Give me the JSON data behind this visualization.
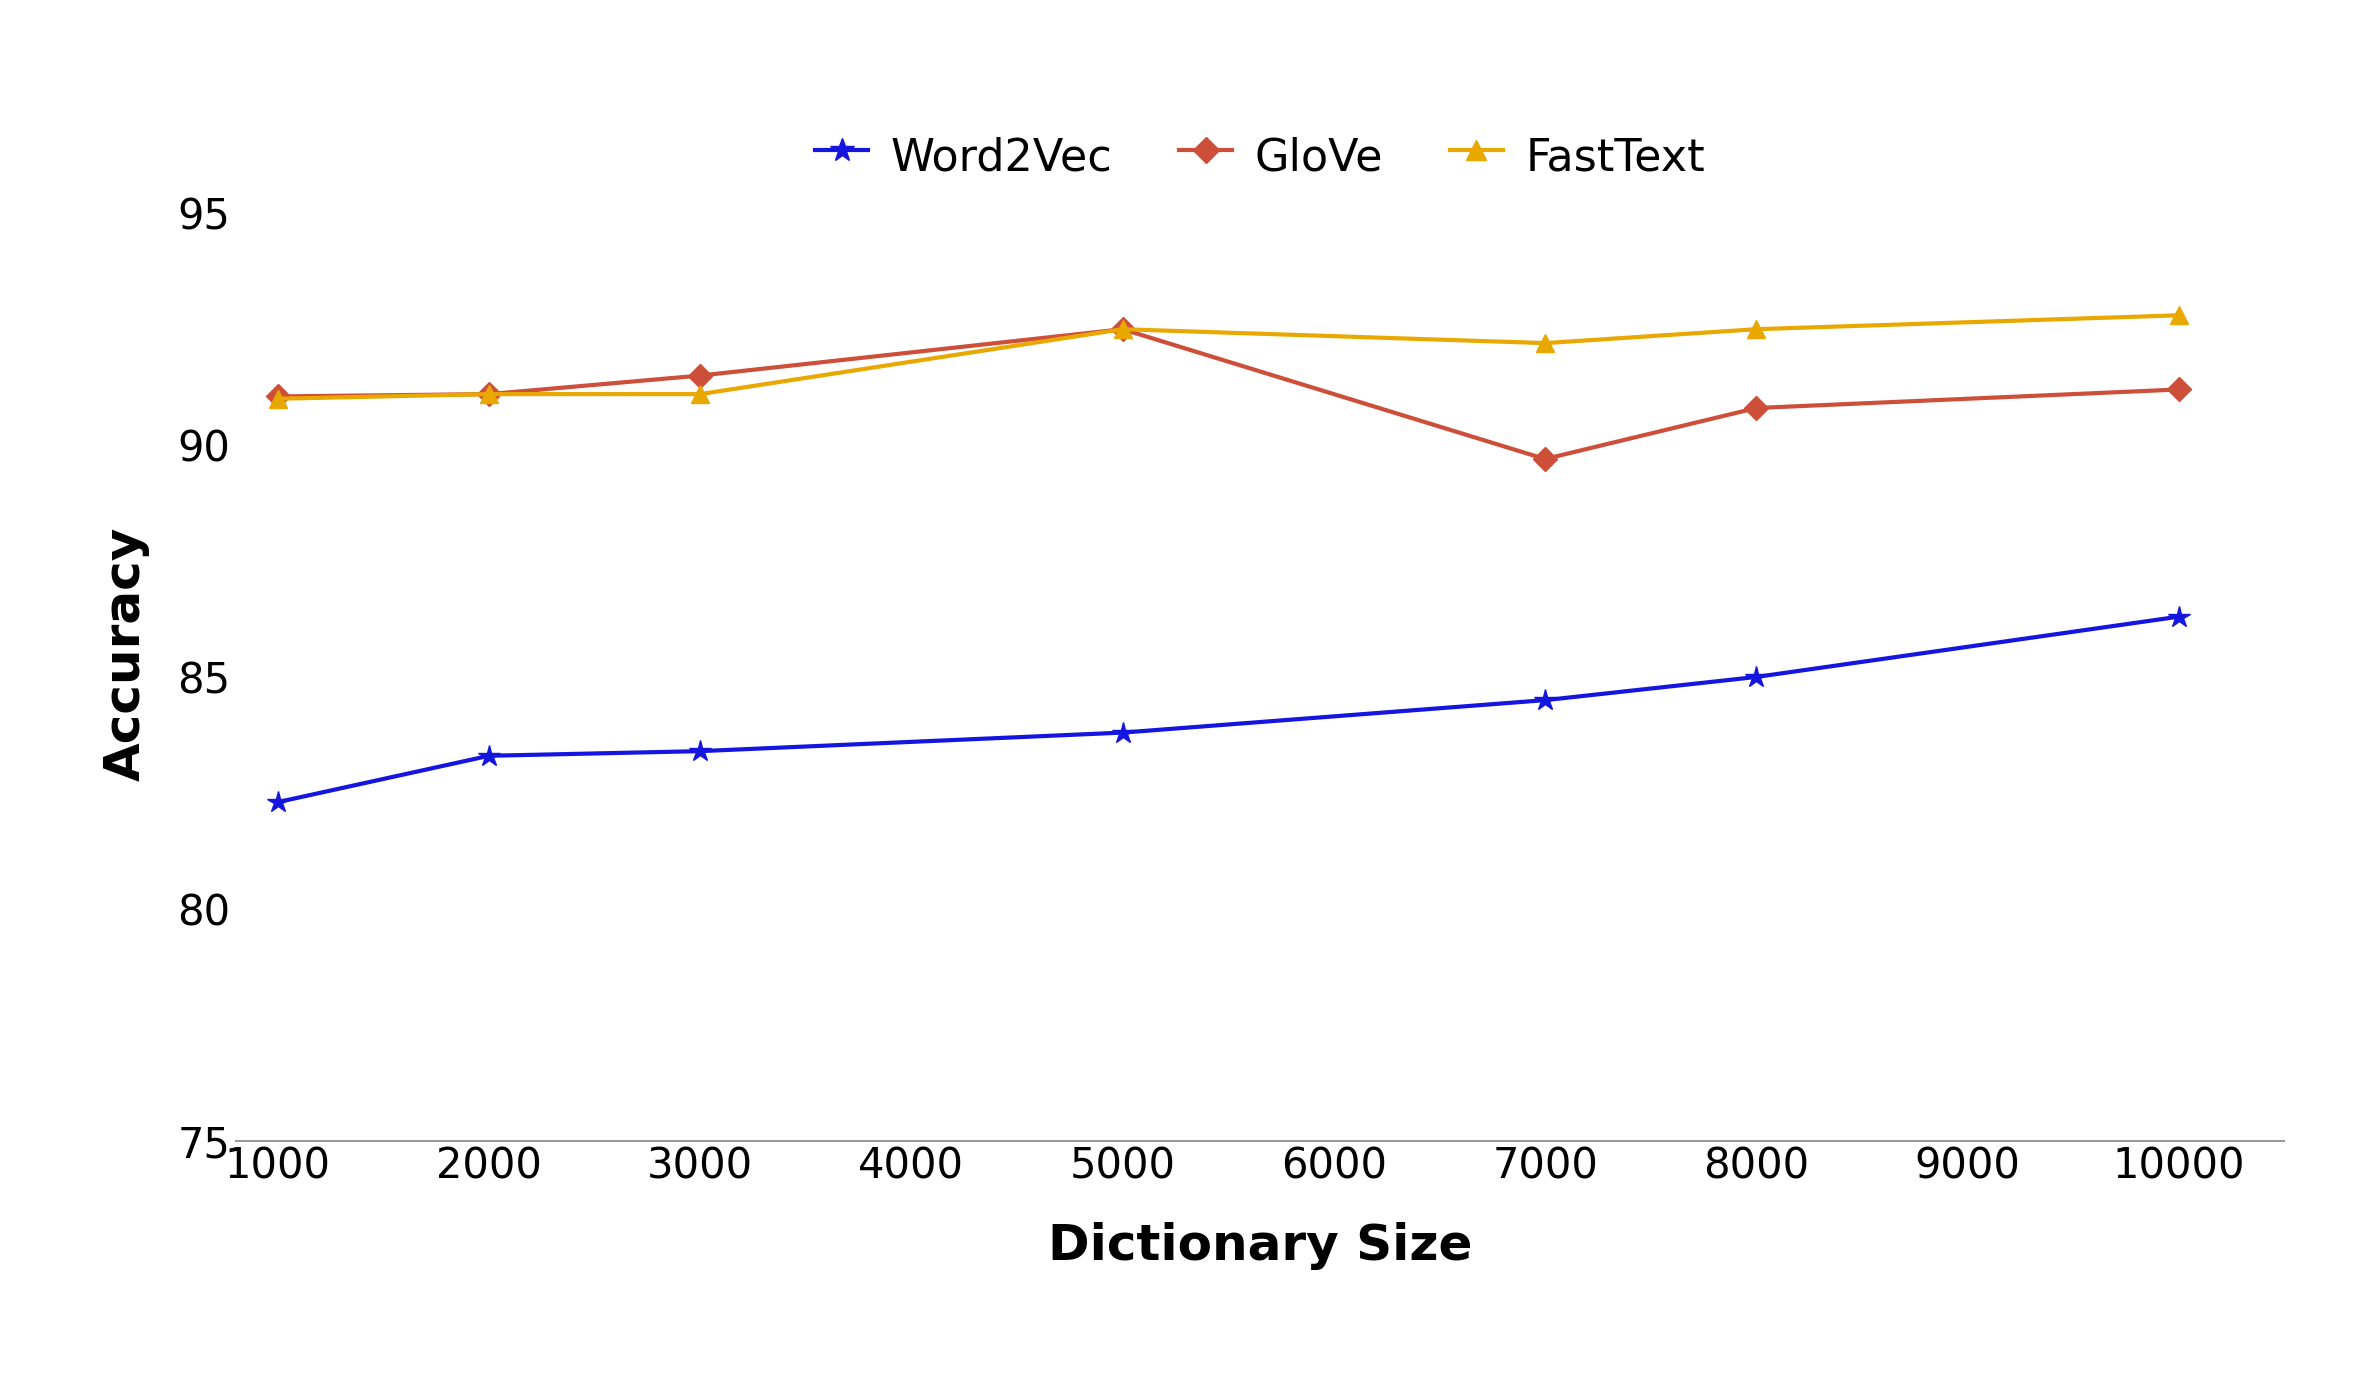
{
  "x": [
    1000,
    2000,
    3000,
    5000,
    7000,
    8000,
    10000
  ],
  "word2vec": [
    82.3,
    83.3,
    83.4,
    83.8,
    84.5,
    85.0,
    86.3
  ],
  "glove": [
    91.05,
    91.1,
    91.5,
    92.5,
    89.7,
    90.8,
    91.2
  ],
  "fasttext": [
    91.0,
    91.1,
    91.1,
    92.5,
    92.2,
    92.5,
    92.8
  ],
  "word2vec_color": "#1515e0",
  "glove_color": "#cd4f3a",
  "fasttext_color": "#e8a800",
  "xlabel": "Dictionary Size",
  "ylabel": "Accuracy",
  "ylim": [
    75,
    96
  ],
  "yticks": [
    75,
    80,
    85,
    90,
    95
  ],
  "xlim": [
    800,
    10500
  ],
  "xticks": [
    1000,
    2000,
    3000,
    4000,
    5000,
    6000,
    7000,
    8000,
    9000,
    10000
  ],
  "legend_labels": [
    "Word2Vec",
    "GloVe",
    "FastText"
  ],
  "linewidth": 3.0,
  "markersize": 16,
  "xlabel_fontsize": 36,
  "ylabel_fontsize": 36,
  "tick_fontsize": 30,
  "legend_fontsize": 32
}
